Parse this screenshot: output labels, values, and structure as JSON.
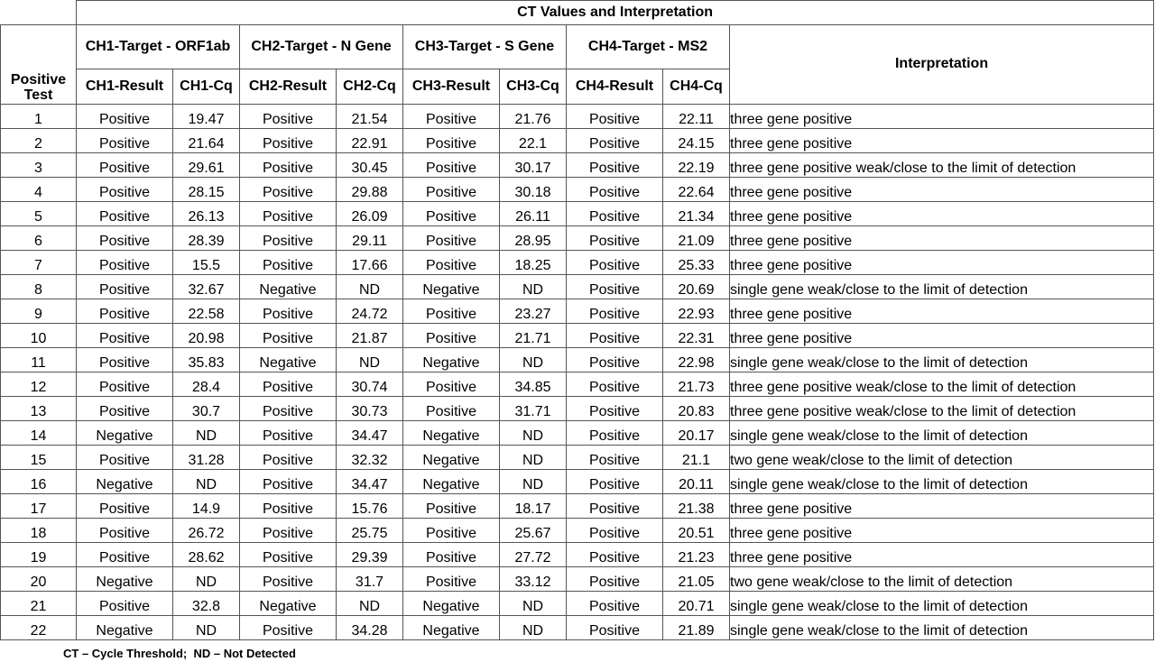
{
  "table": {
    "super_header": "CT Values and Interpretation",
    "positive_test_header": "Positive Test",
    "interpretation_header": "Interpretation",
    "groups": [
      {
        "label": "CH1-Target - ORF1ab",
        "result_header": "CH1-Result",
        "cq_header": "CH1-Cq"
      },
      {
        "label": "CH2-Target - N Gene",
        "result_header": "CH2-Result",
        "cq_header": "CH2-Cq"
      },
      {
        "label": "CH3-Target - S Gene",
        "result_header": "CH3-Result",
        "cq_header": "CH3-Cq"
      },
      {
        "label": "CH4-Target - MS2",
        "result_header": "CH4-Result",
        "cq_header": "CH4-Cq"
      }
    ],
    "rows": [
      [
        "1",
        "Positive",
        "19.47",
        "Positive",
        "21.54",
        "Positive",
        "21.76",
        "Positive",
        "22.11",
        "three gene positive"
      ],
      [
        "2",
        "Positive",
        "21.64",
        "Positive",
        "22.91",
        "Positive",
        "22.1",
        "Positive",
        "24.15",
        "three gene positive"
      ],
      [
        "3",
        "Positive",
        "29.61",
        "Positive",
        "30.45",
        "Positive",
        "30.17",
        "Positive",
        "22.19",
        "three gene positive weak/close to the limit of detection"
      ],
      [
        "4",
        "Positive",
        "28.15",
        "Positive",
        "29.88",
        "Positive",
        "30.18",
        "Positive",
        "22.64",
        "three gene positive"
      ],
      [
        "5",
        "Positive",
        "26.13",
        "Positive",
        "26.09",
        "Positive",
        "26.11",
        "Positive",
        "21.34",
        "three gene positive"
      ],
      [
        "6",
        "Positive",
        "28.39",
        "Positive",
        "29.11",
        "Positive",
        "28.95",
        "Positive",
        "21.09",
        "three gene positive"
      ],
      [
        "7",
        "Positive",
        "15.5",
        "Positive",
        "17.66",
        "Positive",
        "18.25",
        "Positive",
        "25.33",
        "three gene positive"
      ],
      [
        "8",
        "Positive",
        "32.67",
        "Negative",
        "ND",
        "Negative",
        "ND",
        "Positive",
        "20.69",
        "single gene weak/close to the limit of detection"
      ],
      [
        "9",
        "Positive",
        "22.58",
        "Positive",
        "24.72",
        "Positive",
        "23.27",
        "Positive",
        "22.93",
        "three gene positive"
      ],
      [
        "10",
        "Positive",
        "20.98",
        "Positive",
        "21.87",
        "Positive",
        "21.71",
        "Positive",
        "22.31",
        "three gene positive"
      ],
      [
        "11",
        "Positive",
        "35.83",
        "Negative",
        "ND",
        "Negative",
        "ND",
        "Positive",
        "22.98",
        "single gene weak/close to the limit of detection"
      ],
      [
        "12",
        "Positive",
        "28.4",
        "Positive",
        "30.74",
        "Positive",
        "34.85",
        "Positive",
        "21.73",
        "three gene positive weak/close to the limit of detection"
      ],
      [
        "13",
        "Positive",
        "30.7",
        "Positive",
        "30.73",
        "Positive",
        "31.71",
        "Positive",
        "20.83",
        "three gene positive weak/close to the limit of detection"
      ],
      [
        "14",
        "Negative",
        "ND",
        "Positive",
        "34.47",
        "Negative",
        "ND",
        "Positive",
        "20.17",
        "single gene weak/close to the limit of detection"
      ],
      [
        "15",
        "Positive",
        "31.28",
        "Positive",
        "32.32",
        "Negative",
        "ND",
        "Positive",
        "21.1",
        "two gene weak/close to the limit of detection"
      ],
      [
        "16",
        "Negative",
        "ND",
        "Positive",
        "34.47",
        "Negative",
        "ND",
        "Positive",
        "20.11",
        "single gene weak/close to the limit of detection"
      ],
      [
        "17",
        "Positive",
        "14.9",
        "Positive",
        "15.76",
        "Positive",
        "18.17",
        "Positive",
        "21.38",
        "three gene positive"
      ],
      [
        "18",
        "Positive",
        "26.72",
        "Positive",
        "25.75",
        "Positive",
        "25.67",
        "Positive",
        "20.51",
        "three gene positive"
      ],
      [
        "19",
        "Positive",
        "28.62",
        "Positive",
        "29.39",
        "Positive",
        "27.72",
        "Positive",
        "21.23",
        "three gene positive"
      ],
      [
        "20",
        "Negative",
        "ND",
        "Positive",
        "31.7",
        "Positive",
        "33.12",
        "Positive",
        "21.05",
        "two gene weak/close to the limit of detection"
      ],
      [
        "21",
        "Positive",
        "32.8",
        "Negative",
        "ND",
        "Negative",
        "ND",
        "Positive",
        "20.71",
        "single gene weak/close to the limit of detection"
      ],
      [
        "22",
        "Negative",
        "ND",
        "Positive",
        "34.28",
        "Negative",
        "ND",
        "Positive",
        "21.89",
        "single gene weak/close to the limit of detection"
      ]
    ]
  },
  "footnote": "CT – Cycle Threshold;  ND – Not Detected"
}
